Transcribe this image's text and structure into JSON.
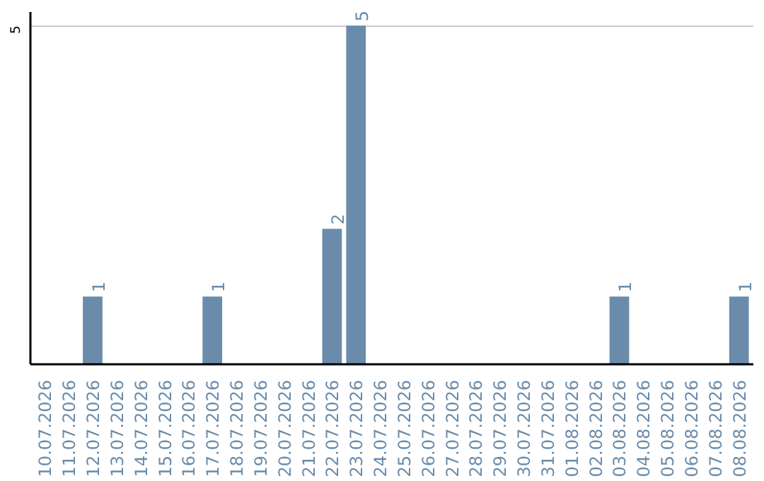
{
  "chart_data": {
    "type": "bar",
    "categories": [
      "10.07.2026",
      "11.07.2026",
      "12.07.2026",
      "13.07.2026",
      "14.07.2026",
      "15.07.2026",
      "16.07.2026",
      "17.07.2026",
      "18.07.2026",
      "19.07.2026",
      "20.07.2026",
      "21.07.2026",
      "22.07.2026",
      "23.07.2026",
      "24.07.2026",
      "25.07.2026",
      "26.07.2026",
      "27.07.2026",
      "28.07.2026",
      "29.07.2026",
      "30.07.2026",
      "31.07.2026",
      "01.08.2026",
      "02.08.2026",
      "03.08.2026",
      "04.08.2026",
      "05.08.2026",
      "06.08.2026",
      "07.08.2026",
      "08.08.2026"
    ],
    "values": [
      0,
      0,
      1,
      0,
      0,
      0,
      0,
      1,
      0,
      0,
      0,
      0,
      2,
      5,
      0,
      0,
      0,
      0,
      0,
      0,
      0,
      0,
      0,
      0,
      1,
      0,
      0,
      0,
      0,
      1
    ],
    "value_labels": [
      null,
      null,
      "1",
      null,
      null,
      null,
      null,
      "1",
      null,
      null,
      null,
      null,
      "2",
      "5",
      null,
      null,
      null,
      null,
      null,
      null,
      null,
      null,
      null,
      null,
      "1",
      null,
      null,
      null,
      null,
      "1"
    ],
    "color": "#6a8caa",
    "ylim": [
      0,
      5.2
    ],
    "yticks": [
      5
    ],
    "grid": "y"
  }
}
